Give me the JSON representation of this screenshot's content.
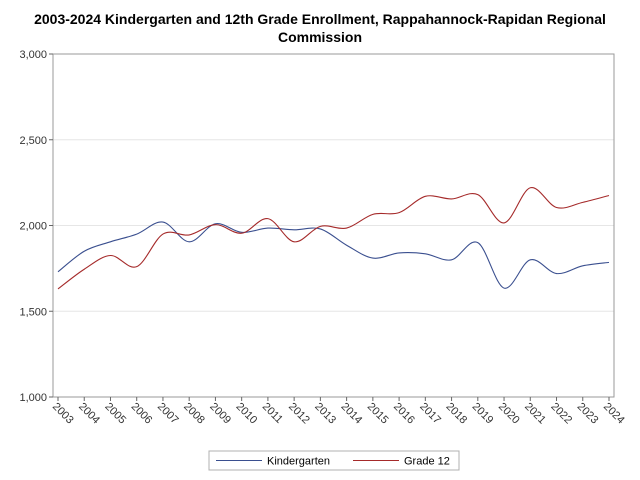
{
  "chart_data": {
    "type": "line",
    "title_lines": [
      "2003-2024 Kindergarten and 12th Grade Enrollment, Rappahannock-Rapidan Regional",
      "Commission"
    ],
    "xlabel": "",
    "ylabel": "",
    "x": [
      "2003",
      "2004",
      "2005",
      "2006",
      "2007",
      "2008",
      "2009",
      "2010",
      "2011",
      "2012",
      "2013",
      "2014",
      "2015",
      "2016",
      "2017",
      "2018",
      "2019",
      "2020",
      "2021",
      "2022",
      "2023",
      "2024"
    ],
    "ylim": [
      1000,
      3000
    ],
    "yticks": [
      1000,
      1500,
      2000,
      2500,
      3000
    ],
    "ytick_labels": [
      "1,000",
      "1,500",
      "2,000",
      "2,500",
      "3,000"
    ],
    "grid": true,
    "legend": "bottom",
    "series": [
      {
        "name": "Kindergarten",
        "color": "#3a4f8f",
        "values": [
          1730,
          1850,
          1905,
          1950,
          2020,
          1905,
          2010,
          1960,
          1985,
          1975,
          1980,
          1885,
          1810,
          1840,
          1835,
          1800,
          1900,
          1635,
          1800,
          1720,
          1765,
          1785
        ]
      },
      {
        "name": "Grade 12",
        "color": "#a52a2a",
        "values": [
          1630,
          1745,
          1825,
          1760,
          1950,
          1945,
          2005,
          1955,
          2040,
          1905,
          1995,
          1985,
          2065,
          2075,
          2170,
          2155,
          2180,
          2015,
          2220,
          2105,
          2135,
          2175
        ]
      }
    ]
  }
}
